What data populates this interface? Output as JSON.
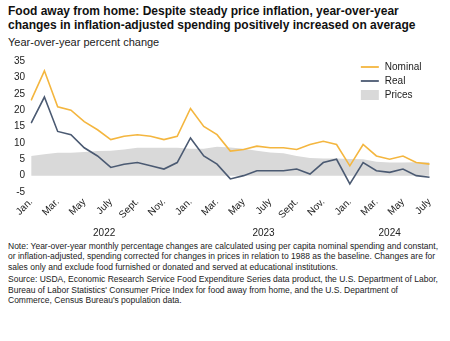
{
  "chart_data": {
    "type": "line",
    "title": "Food away from home: Despite steady price inflation, year-over-year changes in inflation-adjusted spending positively increased on average",
    "y_label": "Year-over-year percent change",
    "categories": [
      "Jan.",
      null,
      "Mar.",
      null,
      "May",
      null,
      "July",
      null,
      "Sept.",
      null,
      "Nov.",
      null,
      "Jan.",
      null,
      "Mar.",
      null,
      "May",
      null,
      "July",
      null,
      "Sept.",
      null,
      "Nov.",
      null,
      "Jan.",
      null,
      "Mar.",
      null,
      "May",
      null,
      "July"
    ],
    "groups": [
      {
        "label": "2022",
        "count": 12
      },
      {
        "label": "2023",
        "count": 12
      },
      {
        "label": "2024",
        "count": 7
      }
    ],
    "series": [
      {
        "name": "Nominal",
        "type": "line",
        "color": "#f4b63f",
        "values": [
          23,
          32,
          21,
          20,
          16.5,
          14,
          11,
          12,
          12.5,
          12,
          11,
          12,
          20.5,
          15,
          12.5,
          7.5,
          8,
          9,
          8.5,
          8.5,
          8,
          9.5,
          10.5,
          9.5,
          3,
          9.5,
          6,
          5,
          6,
          4,
          3.5
        ]
      },
      {
        "name": "Real",
        "type": "line",
        "color": "#4b5a72",
        "values": [
          16,
          24,
          13.5,
          12.5,
          8.5,
          6,
          2.5,
          3.5,
          4,
          3,
          2,
          4,
          11.5,
          6,
          3.5,
          -1,
          0,
          1.5,
          1.5,
          1.5,
          2,
          0.5,
          4,
          5,
          -2.5,
          4,
          1.5,
          1,
          2,
          0,
          -0.5
        ]
      },
      {
        "name": "Prices",
        "type": "area",
        "color": "#d9d9d9",
        "values": [
          6,
          6.5,
          7,
          7,
          7.2,
          7.5,
          7.6,
          8,
          8.5,
          8.5,
          8.5,
          8.5,
          8.2,
          8.2,
          8.8,
          8.6,
          8.2,
          7.6,
          7.1,
          6.8,
          6,
          5.4,
          5.2,
          5.2,
          5.1,
          5,
          4.2,
          4,
          4,
          4.1,
          4.1
        ]
      }
    ],
    "ylim": [
      -5,
      35
    ],
    "yticks": [
      -5,
      0,
      5,
      10,
      15,
      20,
      25,
      30,
      35
    ],
    "grid": false,
    "legend": "upper right",
    "note": "Note: Year-over-year monthly percentage changes are calculated using per capita nominal spending and constant, or inflation-adjusted, spending corrected for changes in prices in relation to 1988 as the baseline. Changes are for sales only and exclude food furnished or donated and served at educational institutions.",
    "source": "Source: USDA, Economic Research Service Food Expenditure Series data product, the U.S. Department of Labor, Bureau of Labor Statistics' Consumer Price Index for food away from home, and the U.S. Department of Commerce, Census Bureau's population data."
  }
}
